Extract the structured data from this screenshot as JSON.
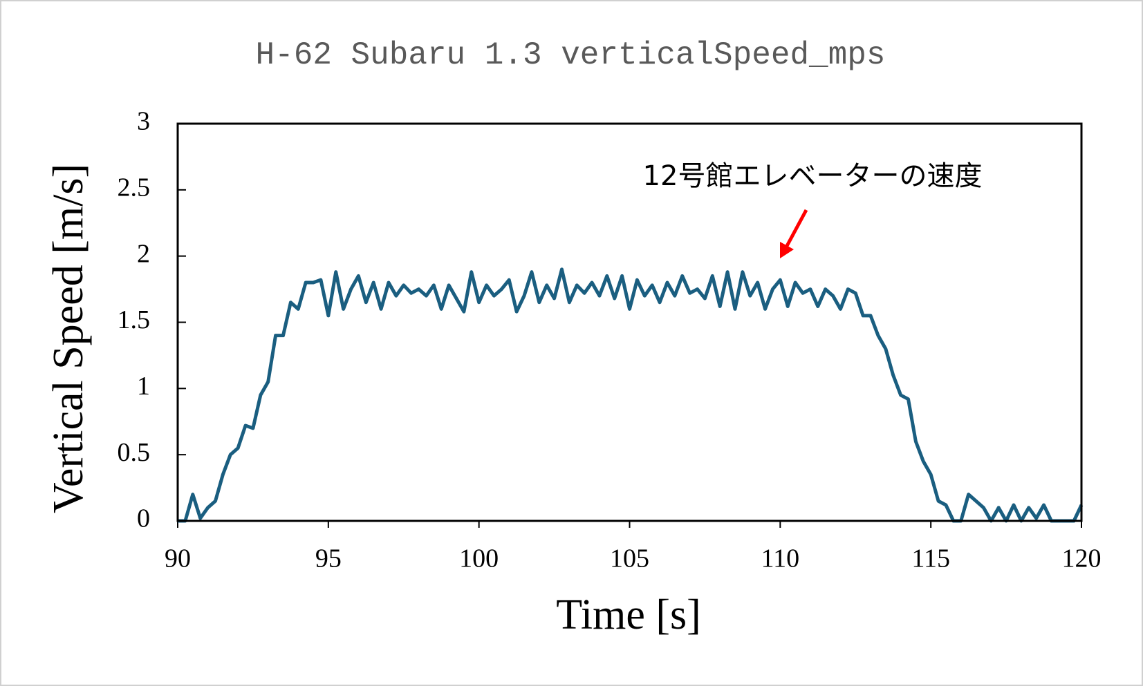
{
  "chart_data": {
    "type": "line",
    "title": "H-62 Subaru 1.3 verticalSpeed_mps",
    "x_label": "Time [s]",
    "y_label": "Vertical Speed [m/s]",
    "annotation": "12号館エレベーターの速度",
    "xlim": [
      90,
      120
    ],
    "xticks": [
      90,
      95,
      100,
      105,
      110,
      115,
      120
    ],
    "ylim": [
      0,
      3
    ],
    "yticks": [
      0,
      0.5,
      1,
      1.5,
      2,
      2.5,
      3
    ],
    "x": [
      90,
      90.25,
      90.5,
      90.75,
      91,
      91.25,
      91.5,
      91.75,
      92,
      92.25,
      92.5,
      92.75,
      93,
      93.25,
      93.5,
      93.75,
      94,
      94.25,
      94.5,
      94.75,
      95,
      95.25,
      95.5,
      95.75,
      96,
      96.25,
      96.5,
      96.75,
      97,
      97.25,
      97.5,
      97.75,
      98,
      98.25,
      98.5,
      98.75,
      99,
      99.25,
      99.5,
      99.75,
      100,
      100.25,
      100.5,
      100.75,
      101,
      101.25,
      101.5,
      101.75,
      102,
      102.25,
      102.5,
      102.75,
      103,
      103.25,
      103.5,
      103.75,
      104,
      104.25,
      104.5,
      104.75,
      105,
      105.25,
      105.5,
      105.75,
      106,
      106.25,
      106.5,
      106.75,
      107,
      107.25,
      107.5,
      107.75,
      108,
      108.25,
      108.5,
      108.75,
      109,
      109.25,
      109.5,
      109.75,
      110,
      110.25,
      110.5,
      110.75,
      111,
      111.25,
      111.5,
      111.75,
      112,
      112.25,
      112.5,
      112.75,
      113,
      113.25,
      113.5,
      113.75,
      114,
      114.25,
      114.5,
      114.75,
      115,
      115.25,
      115.5,
      115.75,
      116,
      116.25,
      116.5,
      116.75,
      117,
      117.25,
      117.5,
      117.75,
      118,
      118.25,
      118.5,
      118.75,
      119,
      119.25,
      119.5,
      119.75,
      120
    ],
    "series": [
      {
        "color": "#1a5e80",
        "values": [
          0,
          0,
          0.2,
          0.02,
          0.1,
          0.15,
          0.35,
          0.5,
          0.55,
          0.72,
          0.7,
          0.95,
          1.05,
          1.4,
          1.4,
          1.65,
          1.6,
          1.8,
          1.8,
          1.82,
          1.55,
          1.88,
          1.6,
          1.75,
          1.85,
          1.65,
          1.8,
          1.6,
          1.8,
          1.7,
          1.78,
          1.72,
          1.75,
          1.7,
          1.78,
          1.6,
          1.78,
          1.68,
          1.58,
          1.88,
          1.65,
          1.78,
          1.7,
          1.75,
          1.82,
          1.58,
          1.7,
          1.88,
          1.65,
          1.78,
          1.68,
          1.9,
          1.65,
          1.78,
          1.72,
          1.8,
          1.7,
          1.85,
          1.68,
          1.85,
          1.6,
          1.82,
          1.7,
          1.78,
          1.65,
          1.8,
          1.7,
          1.85,
          1.72,
          1.75,
          1.68,
          1.85,
          1.62,
          1.88,
          1.6,
          1.88,
          1.7,
          1.8,
          1.6,
          1.75,
          1.82,
          1.62,
          1.8,
          1.72,
          1.75,
          1.62,
          1.75,
          1.7,
          1.6,
          1.75,
          1.72,
          1.55,
          1.55,
          1.4,
          1.3,
          1.1,
          0.95,
          0.92,
          0.6,
          0.45,
          0.35,
          0.15,
          0.12,
          0,
          0,
          0.2,
          0.15,
          0.1,
          0,
          0.1,
          0,
          0.12,
          0,
          0.1,
          0.02,
          0.12,
          0,
          0,
          0,
          0,
          0.12
        ]
      }
    ]
  }
}
